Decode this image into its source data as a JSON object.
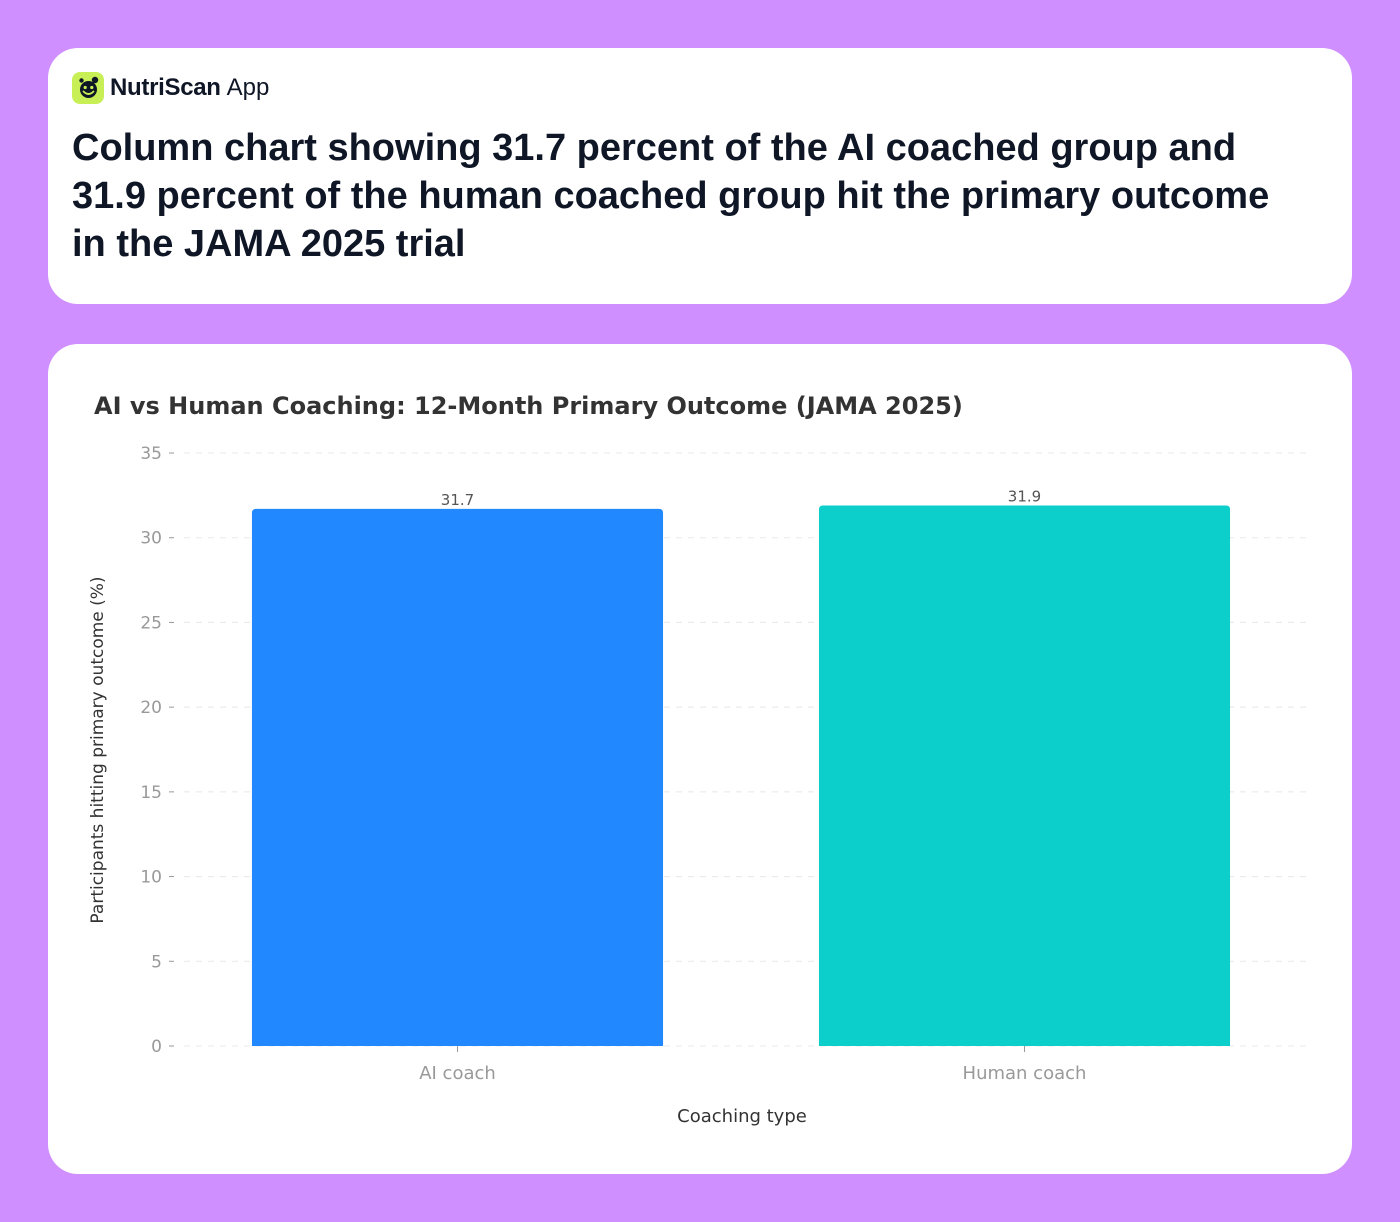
{
  "brand": {
    "name": "NutriScan",
    "suffix": "App",
    "logo_icon": "smiley-leaf-icon",
    "logo_color": "#c8ef55"
  },
  "headline": "Column chart showing 31.7 percent of the AI coached group and 31.9 percent of the human coached group hit the primary outcome in the JAMA 2025 trial",
  "colors": {
    "background": "#d08fff",
    "card": "#ffffff",
    "text_dark": "#0f1626",
    "tick_text": "#999999",
    "grid": "#e8e8e8"
  },
  "chart_data": {
    "type": "bar",
    "title": "AI vs Human Coaching: 12-Month Primary Outcome (JAMA 2025)",
    "xlabel": "Coaching type",
    "ylabel": "Participants hitting primary outcome (%)",
    "categories": [
      "AI coach",
      "Human coach"
    ],
    "values": [
      31.7,
      31.9
    ],
    "value_labels": [
      "31.7",
      "31.9"
    ],
    "bar_colors": [
      "#2288ff",
      "#0ccfcc"
    ],
    "ylim": [
      0,
      35
    ],
    "yticks": [
      0,
      5,
      10,
      15,
      20,
      25,
      30,
      35
    ],
    "grid": "horizontal dashed",
    "legend": "none"
  }
}
